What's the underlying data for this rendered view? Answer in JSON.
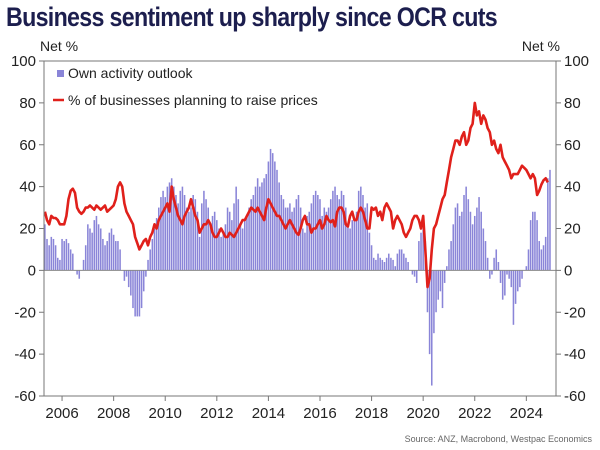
{
  "title": "Business sentiment up sharply since OCR cuts",
  "source": "Source: ANZ, Macrobond, Westpac Economics",
  "colors": {
    "title": "#1c1e4e",
    "bars": "#8a85d8",
    "line": "#e0201b",
    "axis": "#777777"
  },
  "chart_data": {
    "type": "bar+line",
    "title": "Business sentiment up sharply since OCR cuts",
    "ylabel_left": "Net %",
    "ylabel_right": "Net %",
    "ylim": [
      -60,
      100
    ],
    "yticks": [
      -60,
      -40,
      -20,
      0,
      20,
      40,
      60,
      80,
      100
    ],
    "xlim": [
      2005.3,
      2025.15
    ],
    "xticks": [
      2006,
      2008,
      2010,
      2012,
      2014,
      2016,
      2018,
      2020,
      2022,
      2024
    ],
    "legend": {
      "placement": "top-left",
      "entries": [
        "Own activity outlook",
        "% of businesses planning to raise prices"
      ]
    },
    "x_start": 2005.0,
    "frequency": "monthly",
    "series": [
      {
        "name": "Own activity outlook",
        "type": "bar",
        "values": [
          26,
          30,
          30,
          28,
          22,
          15,
          12,
          16,
          15,
          12,
          6,
          5,
          15,
          14,
          15,
          13,
          10,
          8,
          0,
          -2,
          -4,
          0,
          5,
          12,
          22,
          20,
          18,
          24,
          26,
          22,
          20,
          15,
          12,
          14,
          18,
          20,
          17,
          14,
          14,
          10,
          0,
          -5,
          -3,
          -8,
          -12,
          -18,
          -22,
          -22,
          -22,
          -18,
          -10,
          -3,
          5,
          10,
          15,
          20,
          25,
          30,
          35,
          38,
          35,
          40,
          42,
          44,
          40,
          36,
          32,
          38,
          40,
          36,
          30,
          28,
          30,
          36,
          34,
          28,
          16,
          32,
          38,
          34,
          30,
          22,
          26,
          28,
          24,
          20,
          16,
          18,
          22,
          30,
          28,
          24,
          32,
          40,
          34,
          22,
          20,
          24,
          26,
          30,
          34,
          36,
          40,
          44,
          40,
          42,
          44,
          46,
          52,
          58,
          56,
          52,
          48,
          42,
          36,
          34,
          30,
          30,
          32,
          28,
          30,
          34,
          36,
          30,
          20,
          18,
          26,
          28,
          32,
          36,
          38,
          36,
          34,
          26,
          30,
          28,
          30,
          34,
          38,
          40,
          36,
          34,
          38,
          36,
          30,
          22,
          20,
          24,
          24,
          28,
          38,
          40,
          36,
          30,
          32,
          18,
          12,
          6,
          5,
          8,
          6,
          5,
          4,
          6,
          8,
          6,
          5,
          2,
          8,
          10,
          10,
          8,
          6,
          4,
          0,
          -2,
          -3,
          -6,
          14,
          18,
          20,
          14,
          -20,
          -40,
          -55,
          -30,
          -20,
          -14,
          -10,
          -18,
          -6,
          2,
          10,
          14,
          22,
          30,
          32,
          26,
          28,
          36,
          40,
          34,
          28,
          22,
          26,
          30,
          35,
          28,
          20,
          14,
          6,
          -4,
          -2,
          6,
          10,
          4,
          -6,
          -14,
          -12,
          -2,
          -4,
          -8,
          -26,
          -16,
          -10,
          -8,
          -4,
          0,
          2,
          10,
          24,
          28,
          28,
          24,
          14,
          10,
          12,
          16,
          44,
          48
        ]
      },
      {
        "name": "% of businesses planning to raise prices",
        "type": "line",
        "values": [
          22,
          24,
          28,
          30,
          28,
          24,
          22,
          26,
          25,
          25,
          24,
          22,
          22,
          22,
          26,
          34,
          38,
          39,
          37,
          30,
          28,
          27,
          28,
          30,
          30,
          31,
          30,
          29,
          31,
          30,
          29,
          30,
          31,
          28,
          29,
          30,
          31,
          34,
          40,
          42,
          40,
          32,
          28,
          26,
          24,
          22,
          16,
          13,
          10,
          12,
          14,
          15,
          12,
          16,
          18,
          22,
          20,
          24,
          26,
          28,
          30,
          32,
          28,
          40,
          34,
          30,
          26,
          24,
          22,
          26,
          28,
          30,
          34,
          30,
          26,
          24,
          18,
          20,
          22,
          22,
          24,
          22,
          18,
          16,
          16,
          18,
          20,
          18,
          16,
          16,
          18,
          17,
          16,
          18,
          20,
          22,
          24,
          24,
          26,
          28,
          30,
          29,
          28,
          30,
          28,
          26,
          24,
          30,
          34,
          32,
          30,
          28,
          26,
          26,
          24,
          22,
          20,
          22,
          24,
          22,
          20,
          18,
          17,
          20,
          24,
          26,
          22,
          22,
          18,
          20,
          20,
          22,
          24,
          20,
          22,
          26,
          24,
          23,
          24,
          21,
          28,
          30,
          30,
          28,
          22,
          21,
          26,
          28,
          24,
          24,
          28,
          30,
          28,
          24,
          20,
          20,
          30,
          29,
          30,
          26,
          28,
          24,
          30,
          32,
          30,
          28,
          20,
          24,
          26,
          24,
          22,
          18,
          16,
          18,
          20,
          24,
          26,
          26,
          24,
          20,
          26,
          10,
          -8,
          -4,
          10,
          20,
          22,
          26,
          30,
          34,
          36,
          42,
          48,
          54,
          58,
          62,
          62,
          60,
          64,
          66,
          60,
          62,
          68,
          70,
          80,
          74,
          76,
          70,
          74,
          72,
          68,
          66,
          60,
          62,
          58,
          56,
          60,
          54,
          52,
          50,
          48,
          44,
          46,
          46,
          46,
          48,
          50,
          49,
          48,
          46,
          44,
          46,
          44,
          36,
          38,
          41,
          43,
          44,
          42
        ]
      }
    ]
  }
}
